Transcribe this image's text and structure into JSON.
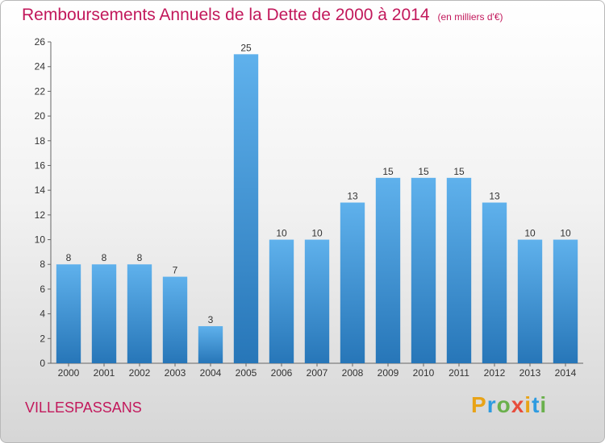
{
  "chart_data": {
    "type": "bar",
    "title": "Remboursements Annuels de la Dette de 2000 à 2014",
    "subtitle": "(en milliers d'€)",
    "categories": [
      "2000",
      "2001",
      "2002",
      "2003",
      "2004",
      "2005",
      "2006",
      "2007",
      "2008",
      "2009",
      "2010",
      "2011",
      "2012",
      "2013",
      "2014"
    ],
    "values": [
      8,
      8,
      8,
      7,
      3,
      25,
      10,
      10,
      13,
      15,
      15,
      15,
      13,
      10,
      10
    ],
    "ylim": [
      0,
      26
    ],
    "yticks": [
      0,
      2,
      4,
      6,
      8,
      10,
      12,
      14,
      16,
      18,
      20,
      22,
      24,
      26
    ],
    "grid": false,
    "bar_color": "#3a8fd6"
  },
  "footer": {
    "commune": "VILLESPASSANS",
    "logo_letters": [
      "P",
      "r",
      "o",
      "x",
      "i",
      "t",
      "i"
    ],
    "logo_colors": [
      "#e8a317",
      "#2e9be0",
      "#6ab04c",
      "#e74c3c",
      "#e8a317",
      "#2e9be0",
      "#6ab04c"
    ]
  }
}
